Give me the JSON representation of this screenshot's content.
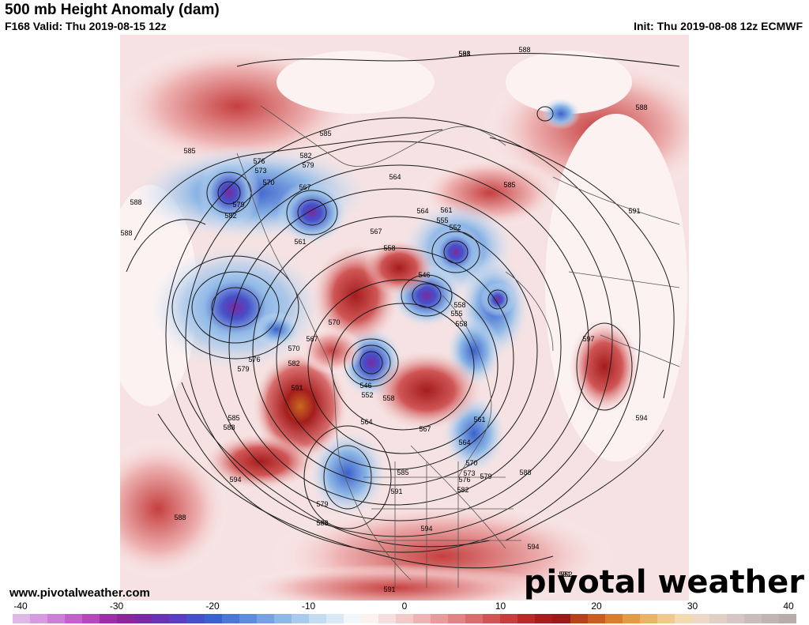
{
  "header": {
    "title": "500 mb Height Anomaly (dam)",
    "valid": "F168 Valid: Thu 2019-08-15 12z",
    "init": "Init: Thu 2019-08-08 12z ECMWF"
  },
  "footer": {
    "url": "www.pivotalweather.com",
    "brand": "pivotal weather"
  },
  "colorbar": {
    "ticks": [
      "-40",
      "-30",
      "-20",
      "-10",
      "0",
      "10",
      "20",
      "30",
      "40"
    ],
    "colors": [
      "#e0b8e8",
      "#d79ce0",
      "#cc7fd6",
      "#c062c8",
      "#b34ab8",
      "#9b2fa6",
      "#8a2898",
      "#7a2aa3",
      "#6a33b4",
      "#5b3fc0",
      "#4650c8",
      "#3b62cc",
      "#4a78d4",
      "#5d8edb",
      "#76a3e0",
      "#8fb8e6",
      "#a8cbec",
      "#c2dcf2",
      "#dbe9f7",
      "#f2f7fc",
      "#fcf2f2",
      "#f8dede",
      "#f3caca",
      "#eeb3b3",
      "#e79c9c",
      "#e08585",
      "#d86e6e",
      "#d05656",
      "#c63f3f",
      "#b82a2a",
      "#a51d1d",
      "#9a1a1a",
      "#b5421f",
      "#c85f22",
      "#d67f2e",
      "#e09c47",
      "#e8b469",
      "#efc98e",
      "#f4dab0",
      "#eed8c6",
      "#e2cfc6",
      "#d6c6c6",
      "#cbbdbd",
      "#c0b5b5",
      "#b8adad"
    ]
  },
  "contour_labels": [
    {
      "t": "588"
    },
    {
      "t": "588"
    },
    {
      "t": "585"
    },
    {
      "t": "588"
    },
    {
      "t": "585"
    },
    {
      "t": "576"
    },
    {
      "t": "573"
    },
    {
      "t": "570"
    },
    {
      "t": "582"
    },
    {
      "t": "579"
    },
    {
      "t": "567"
    },
    {
      "t": "564"
    },
    {
      "t": "579"
    },
    {
      "t": "582"
    },
    {
      "t": "561"
    },
    {
      "t": "564"
    },
    {
      "t": "561"
    },
    {
      "t": "555"
    },
    {
      "t": "552"
    },
    {
      "t": "567"
    },
    {
      "t": "558"
    },
    {
      "t": "546"
    },
    {
      "t": "555"
    },
    {
      "t": "558"
    },
    {
      "t": "570"
    },
    {
      "t": "567"
    },
    {
      "t": "570"
    },
    {
      "t": "576"
    },
    {
      "t": "579"
    },
    {
      "t": "582"
    },
    {
      "t": "591"
    },
    {
      "t": "585"
    },
    {
      "t": "588"
    },
    {
      "t": "594"
    },
    {
      "t": "588"
    },
    {
      "t": "546"
    },
    {
      "t": "552"
    },
    {
      "t": "558"
    },
    {
      "t": "564"
    },
    {
      "t": "567"
    },
    {
      "t": "561"
    },
    {
      "t": "564"
    },
    {
      "t": "570"
    },
    {
      "t": "573"
    },
    {
      "t": "576"
    },
    {
      "t": "579"
    },
    {
      "t": "582"
    },
    {
      "t": "585"
    },
    {
      "t": "591"
    },
    {
      "t": "579"
    },
    {
      "t": "588"
    },
    {
      "t": "594"
    },
    {
      "t": "588"
    },
    {
      "t": "597"
    },
    {
      "t": "594"
    },
    {
      "t": "591"
    },
    {
      "t": "594"
    },
    {
      "t": "591"
    },
    {
      "t": "591"
    },
    {
      "t": "588"
    },
    {
      "t": "588"
    },
    {
      "t": "591"
    },
    {
      "t": "552"
    },
    {
      "t": "558"
    },
    {
      "t": "585"
    }
  ]
}
